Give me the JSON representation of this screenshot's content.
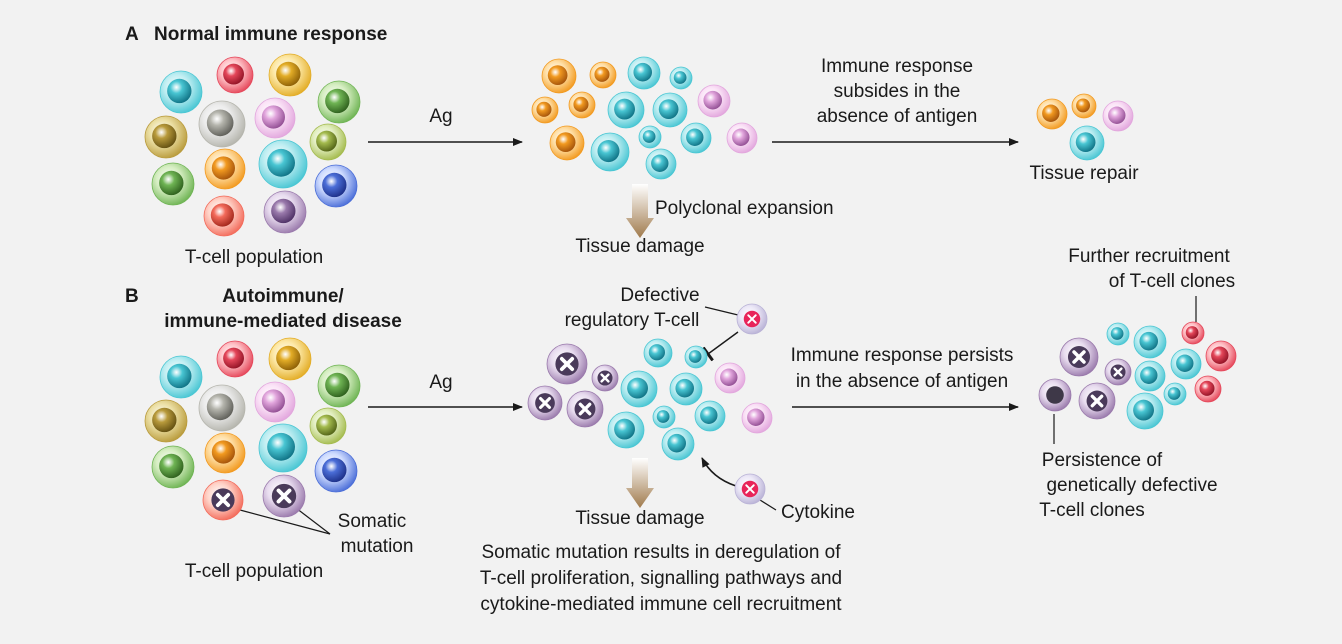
{
  "panel_a": {
    "letter": "A",
    "title": "Normal immune response",
    "population_label": "T-cell population",
    "arrow1_label": "Ag",
    "expansion_label": "Polyclonal expansion",
    "damage_label": "Tissue damage",
    "subside_lines": [
      "Immune response",
      "subsides in the",
      "absence of antigen"
    ],
    "repair_label": "Tissue repair"
  },
  "panel_b": {
    "letter": "B",
    "title_lines": [
      "Autoimmune/",
      "immune-mediated disease"
    ],
    "population_label": "T-cell population",
    "somatic_lines": [
      "Somatic",
      "mutation"
    ],
    "arrow1_label": "Ag",
    "defective_lines": [
      "Defective",
      "regulatory T-cell"
    ],
    "damage_label": "Tissue damage",
    "cytokine_label": "Cytokine",
    "result_lines": [
      "Somatic mutation results in deregulation of",
      "T-cell proliferation, signalling pathways and",
      "cytokine-mediated immune cell recruitment"
    ],
    "persist_lines": [
      "Immune response persists",
      "in the absence of antigen"
    ],
    "further_lines": [
      "Further recruitment",
      "of T-cell clones"
    ],
    "persistence_lines": [
      "Persistence of",
      "genetically defective",
      "T-cell clones"
    ]
  },
  "palette": {
    "teal": [
      "#bfeef2",
      "#49c6d3",
      "#0d6f82"
    ],
    "red": [
      "#ffc3c8",
      "#e5475a",
      "#8e1023"
    ],
    "gold": [
      "#fde9a8",
      "#e3ad27",
      "#8a5d05"
    ],
    "green": [
      "#d6eec2",
      "#6fb454",
      "#2c5d1b"
    ],
    "olive": [
      "#ece0a5",
      "#b99b3c",
      "#604d10"
    ],
    "gray": [
      "#ececec",
      "#b5b5ad",
      "#5b5b55"
    ],
    "pink": [
      "#fbe4f7",
      "#e2a6dd",
      "#8e4a90"
    ],
    "lime": [
      "#e3efc2",
      "#a4bb4e",
      "#4f6015"
    ],
    "orange": [
      "#ffe0a8",
      "#f29a20",
      "#a1500a"
    ],
    "salmon": [
      "#ffd3c8",
      "#f36b5b",
      "#9e2419"
    ],
    "violet": [
      "#e8dcef",
      "#9a7aac",
      "#4b2e63"
    ],
    "blue": [
      "#cfdcff",
      "#4b6ed8",
      "#1b2d85"
    ],
    "lavender": [
      "#ece8f7",
      "#b9b2d6",
      "#7b6fa5"
    ]
  }
}
